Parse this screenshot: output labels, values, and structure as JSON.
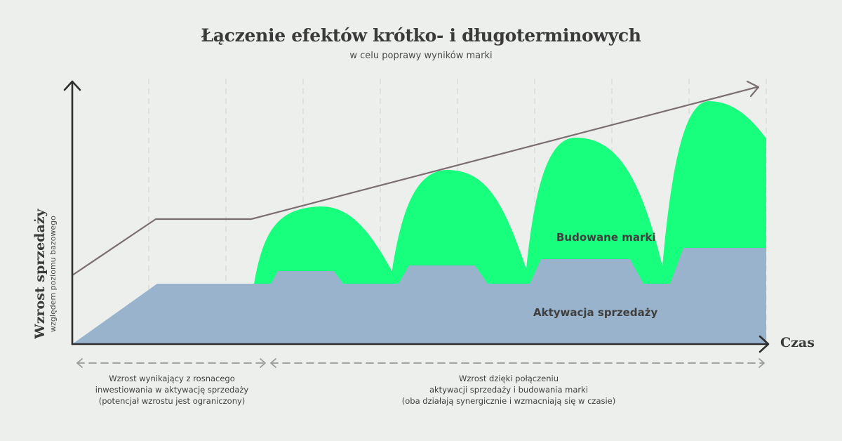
{
  "title": "Łączenie efektów krótko- i długoterminowych",
  "subtitle": "w celu poprawy wyników marki",
  "y_axis": {
    "label": "Wzrost sprzedaży",
    "sublabel": "względem poziomu bazowego"
  },
  "x_axis": {
    "label": "Czas"
  },
  "areas": {
    "brand": {
      "label": "Budowane marki",
      "color": "#17ff7c"
    },
    "sales": {
      "label": "Aktywacja sprzedaży",
      "color": "#98b3cb"
    }
  },
  "colors": {
    "background": "#edefec",
    "axis": "#2f2f2f",
    "trend": "#7b6e72",
    "dashes": "#9a9a9a",
    "grid": "#d9dbd8"
  },
  "captions": {
    "left": {
      "line1": "Wzrost wynikający z rosnacego",
      "line2": "inwestiowania w aktywację sprzedaży",
      "line3": "(potencjał wzrostu jest ograniczony)"
    },
    "right": {
      "line1": "Wzrost dzięki połączeniu",
      "line2": "aktywacji sprzedaży i budowania marki",
      "line3": "(oba działają synergicznie i wzmacniają się w czasie)"
    }
  }
}
